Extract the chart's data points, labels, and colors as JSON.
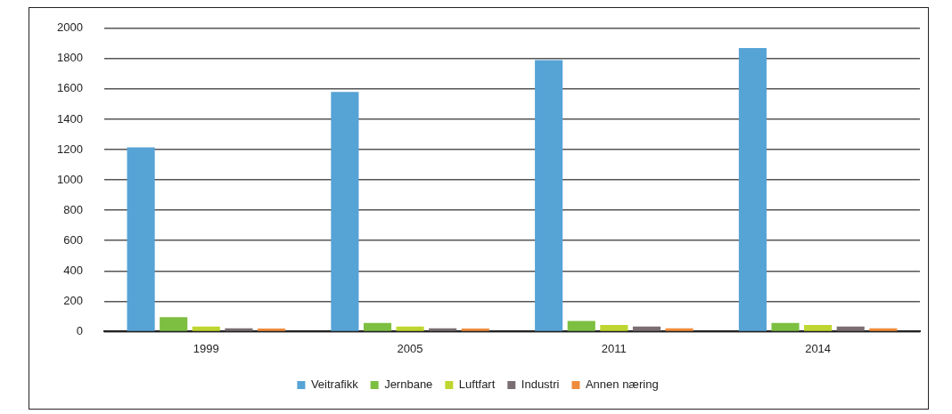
{
  "chart_data": {
    "type": "bar",
    "categories": [
      "1999",
      "2005",
      "2011",
      "2014"
    ],
    "series": [
      {
        "name": "Veitrafikk",
        "color": "#56a3d6",
        "values": [
          1215,
          1580,
          1790,
          1870
        ]
      },
      {
        "name": "Jernbane",
        "color": "#7cbf41",
        "values": [
          95,
          57,
          70,
          57
        ]
      },
      {
        "name": "Luftfart",
        "color": "#bed62f",
        "values": [
          33,
          33,
          44,
          44
        ]
      },
      {
        "name": "Industri",
        "color": "#7a6e70",
        "values": [
          21,
          21,
          33,
          33
        ]
      },
      {
        "name": "Annen næring",
        "color": "#f08c3c",
        "values": [
          20,
          20,
          21,
          21
        ]
      }
    ],
    "ylim": [
      0,
      2000
    ],
    "yticks": [
      0,
      200,
      400,
      600,
      800,
      1000,
      1200,
      1400,
      1600,
      1800,
      2000
    ],
    "grid": "y",
    "legend": "bottom"
  }
}
